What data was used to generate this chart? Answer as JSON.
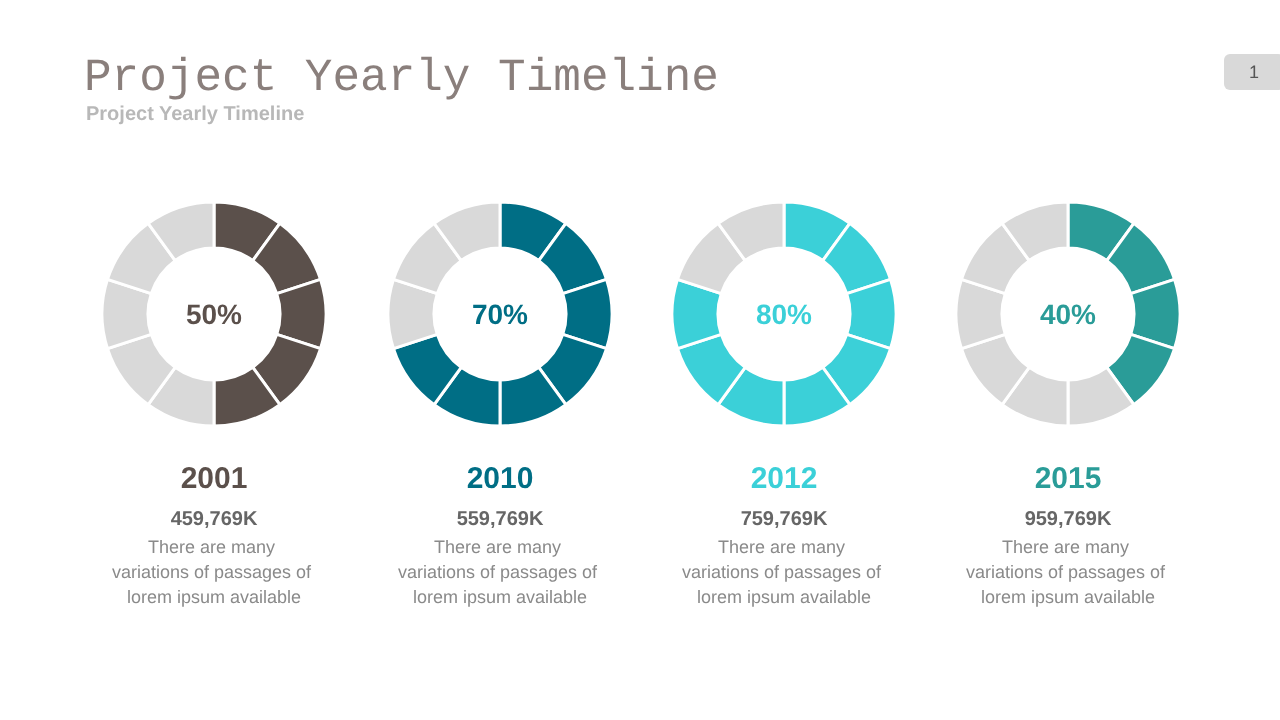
{
  "chart_data": [
    {
      "type": "other",
      "title": "Project Yearly Timeline",
      "subtitle": "Project Yearly Timeline",
      "annotations": [
        "1"
      ]
    },
    {
      "type": "donut",
      "title": "2001",
      "subtitle": "459,769K",
      "categories": [
        null,
        null,
        null,
        null,
        null,
        null,
        null,
        null,
        null,
        null
      ],
      "values": [
        10,
        10,
        10,
        10,
        10,
        10,
        10,
        10,
        10,
        10
      ],
      "colors": [
        "#5b504b",
        "#5b504b",
        "#5b504b",
        "#5b504b",
        "#5b504b",
        "#d9d9d9",
        "#d9d9d9",
        "#d9d9d9",
        "#d9d9d9",
        "#d9d9d9"
      ],
      "annotations": [
        "50%",
        "There are many variations of passages of lorem ipsum available"
      ]
    },
    {
      "type": "donut",
      "title": "2010",
      "subtitle": "559,769K",
      "categories": [
        null,
        null,
        null,
        null,
        null,
        null,
        null,
        null,
        null,
        null
      ],
      "values": [
        10,
        10,
        10,
        10,
        10,
        10,
        10,
        10,
        10,
        10
      ],
      "colors": [
        "#006e85",
        "#006e85",
        "#006e85",
        "#006e85",
        "#006e85",
        "#006e85",
        "#006e85",
        "#d9d9d9",
        "#d9d9d9",
        "#d9d9d9"
      ],
      "annotations": [
        "70%",
        "There are many variations of passages of lorem ipsum available"
      ]
    },
    {
      "type": "donut",
      "title": "2012",
      "subtitle": "759,769K",
      "categories": [
        null,
        null,
        null,
        null,
        null,
        null,
        null,
        null,
        null,
        null
      ],
      "values": [
        10,
        10,
        10,
        10,
        10,
        10,
        10,
        10,
        10,
        10
      ],
      "colors": [
        "#3bd0d8",
        "#3bd0d8",
        "#3bd0d8",
        "#3bd0d8",
        "#3bd0d8",
        "#3bd0d8",
        "#3bd0d8",
        "#3bd0d8",
        "#d9d9d9",
        "#d9d9d9"
      ],
      "annotations": [
        "80%",
        "There are many variations of passages of lorem ipsum available"
      ]
    },
    {
      "type": "donut",
      "title": "2015",
      "subtitle": "959,769K",
      "categories": [
        null,
        null,
        null,
        null,
        null,
        null,
        null,
        null,
        null,
        null
      ],
      "values": [
        10,
        10,
        10,
        10,
        10,
        10,
        10,
        10,
        10,
        10
      ],
      "colors": [
        "#2a9c98",
        "#2a9c98",
        "#2a9c98",
        "#2a9c98",
        "#d9d9d9",
        "#d9d9d9",
        "#d9d9d9",
        "#d9d9d9",
        "#d9d9d9",
        "#d9d9d9"
      ],
      "annotations": [
        "40%",
        "There are many variations of passages of lorem ipsum available"
      ]
    }
  ]
}
